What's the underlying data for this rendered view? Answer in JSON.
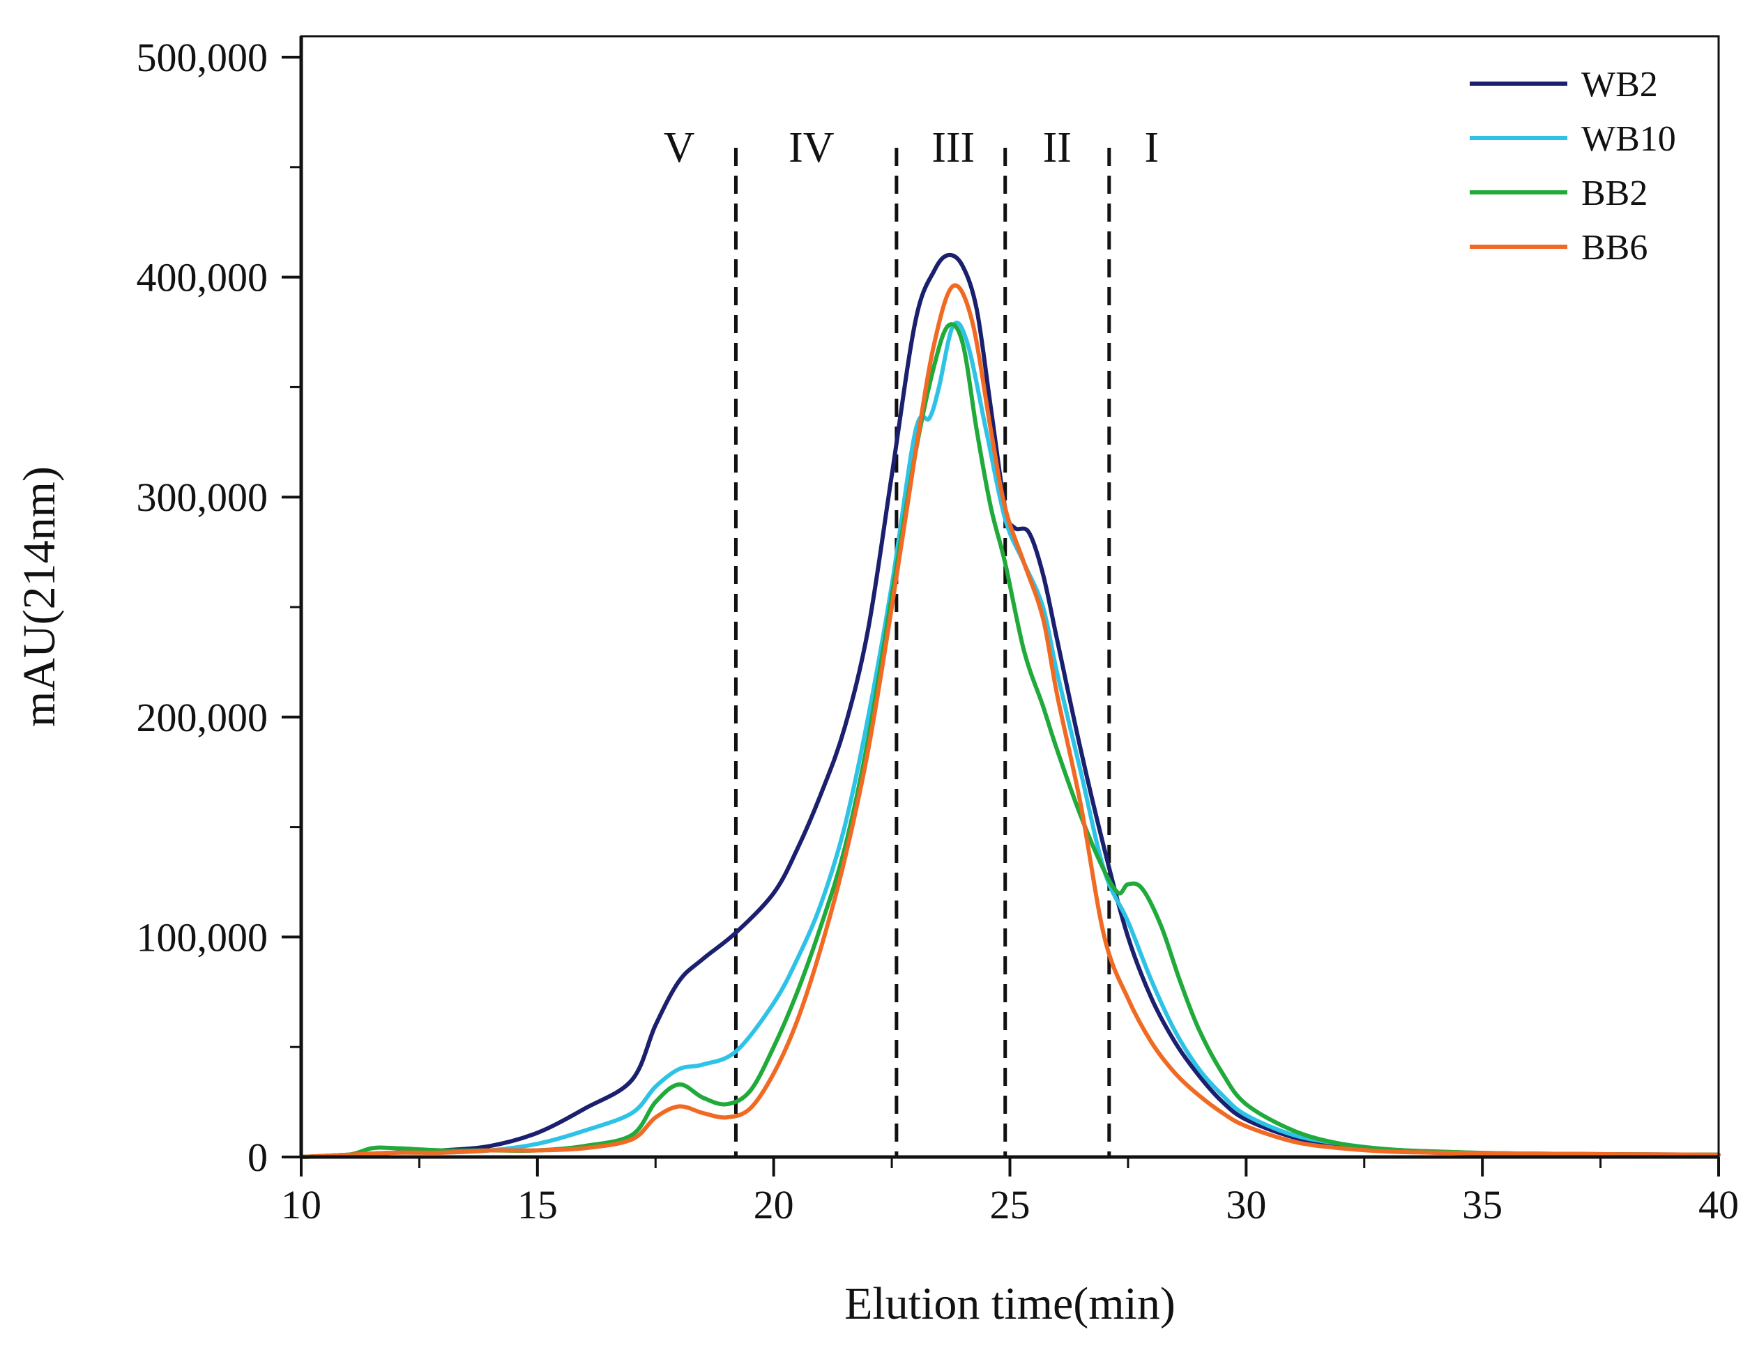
{
  "chart_data": {
    "type": "line",
    "title": "",
    "xlabel": "Elution time(min)",
    "ylabel": "mAU(214nm)",
    "xlim": [
      10,
      40
    ],
    "ylim": [
      0,
      500000
    ],
    "xticks": [
      10,
      15,
      20,
      25,
      30,
      35,
      40
    ],
    "xtick_labels": [
      "10",
      "15",
      "20",
      "25",
      "30",
      "35",
      "40"
    ],
    "yticks": [
      0,
      100000,
      200000,
      300000,
      400000,
      500000
    ],
    "ytick_labels": [
      "0",
      "100,000",
      "200,000",
      "300,000",
      "400,000",
      "500,000"
    ],
    "legend_position": "top-right",
    "regions": [
      {
        "label": "V",
        "x": 18.0
      },
      {
        "label": "IV",
        "x": 20.8
      },
      {
        "label": "III",
        "x": 23.8
      },
      {
        "label": "II",
        "x": 26.0
      },
      {
        "label": "I",
        "x": 28.0
      }
    ],
    "region_boundaries": [
      19.2,
      22.6,
      24.9,
      27.1
    ],
    "series": [
      {
        "name": "WB2",
        "color": "#1a1f6e",
        "points": [
          [
            10,
            0
          ],
          [
            11,
            1000
          ],
          [
            12,
            2000
          ],
          [
            13,
            3000
          ],
          [
            14,
            5000
          ],
          [
            15,
            11000
          ],
          [
            16,
            22000
          ],
          [
            17,
            35000
          ],
          [
            17.5,
            60000
          ],
          [
            18,
            80000
          ],
          [
            18.5,
            90000
          ],
          [
            19.2,
            102000
          ],
          [
            20,
            120000
          ],
          [
            20.5,
            140000
          ],
          [
            21,
            165000
          ],
          [
            21.5,
            195000
          ],
          [
            22,
            240000
          ],
          [
            22.5,
            310000
          ],
          [
            23,
            380000
          ],
          [
            23.4,
            403000
          ],
          [
            23.7,
            410000
          ],
          [
            24,
            405000
          ],
          [
            24.3,
            385000
          ],
          [
            24.6,
            340000
          ],
          [
            24.9,
            295000
          ],
          [
            25.1,
            286000
          ],
          [
            25.4,
            284000
          ],
          [
            25.7,
            265000
          ],
          [
            26,
            235000
          ],
          [
            26.5,
            185000
          ],
          [
            27,
            140000
          ],
          [
            27.5,
            100000
          ],
          [
            28,
            72000
          ],
          [
            28.5,
            52000
          ],
          [
            29,
            37000
          ],
          [
            29.5,
            25000
          ],
          [
            30,
            17000
          ],
          [
            31,
            9000
          ],
          [
            32,
            5000
          ],
          [
            33,
            3000
          ],
          [
            34,
            2000
          ],
          [
            36,
            1500
          ],
          [
            40,
            1000
          ]
        ]
      },
      {
        "name": "WB10",
        "color": "#2ec3e6",
        "points": [
          [
            10,
            0
          ],
          [
            11,
            1000
          ],
          [
            12,
            2000
          ],
          [
            13,
            2000
          ],
          [
            14,
            3000
          ],
          [
            15,
            6000
          ],
          [
            16,
            12000
          ],
          [
            17,
            20000
          ],
          [
            17.5,
            32000
          ],
          [
            18,
            40000
          ],
          [
            18.5,
            42000
          ],
          [
            19.2,
            48000
          ],
          [
            20,
            70000
          ],
          [
            20.5,
            90000
          ],
          [
            21,
            115000
          ],
          [
            21.5,
            150000
          ],
          [
            22,
            200000
          ],
          [
            22.5,
            260000
          ],
          [
            23,
            330000
          ],
          [
            23.3,
            336000
          ],
          [
            23.5,
            350000
          ],
          [
            23.8,
            378000
          ],
          [
            24.1,
            370000
          ],
          [
            24.5,
            330000
          ],
          [
            24.9,
            290000
          ],
          [
            25.3,
            270000
          ],
          [
            25.7,
            250000
          ],
          [
            26,
            220000
          ],
          [
            26.5,
            175000
          ],
          [
            27,
            130000
          ],
          [
            27.5,
            107000
          ],
          [
            28,
            80000
          ],
          [
            28.5,
            57000
          ],
          [
            29,
            40000
          ],
          [
            29.5,
            28000
          ],
          [
            30,
            19000
          ],
          [
            31,
            10000
          ],
          [
            32,
            6000
          ],
          [
            33,
            3500
          ],
          [
            34,
            2500
          ],
          [
            36,
            1500
          ],
          [
            40,
            1000
          ]
        ]
      },
      {
        "name": "BB2",
        "color": "#1faa3a",
        "points": [
          [
            10,
            0
          ],
          [
            11,
            1000
          ],
          [
            11.5,
            4000
          ],
          [
            12,
            4000
          ],
          [
            13,
            3000
          ],
          [
            14,
            3000
          ],
          [
            15,
            3000
          ],
          [
            16,
            5000
          ],
          [
            17,
            10000
          ],
          [
            17.5,
            25000
          ],
          [
            18,
            33000
          ],
          [
            18.5,
            27000
          ],
          [
            19,
            24000
          ],
          [
            19.5,
            30000
          ],
          [
            20,
            50000
          ],
          [
            20.5,
            75000
          ],
          [
            21,
            105000
          ],
          [
            21.5,
            140000
          ],
          [
            22,
            190000
          ],
          [
            22.5,
            255000
          ],
          [
            23,
            320000
          ],
          [
            23.4,
            360000
          ],
          [
            23.7,
            378000
          ],
          [
            24,
            370000
          ],
          [
            24.3,
            330000
          ],
          [
            24.6,
            295000
          ],
          [
            24.9,
            270000
          ],
          [
            25.3,
            230000
          ],
          [
            25.7,
            205000
          ],
          [
            26,
            185000
          ],
          [
            26.5,
            155000
          ],
          [
            27,
            130000
          ],
          [
            27.3,
            120000
          ],
          [
            27.5,
            124000
          ],
          [
            27.8,
            122000
          ],
          [
            28.2,
            105000
          ],
          [
            28.6,
            80000
          ],
          [
            29,
            58000
          ],
          [
            29.5,
            38000
          ],
          [
            30,
            24000
          ],
          [
            31,
            12000
          ],
          [
            32,
            6000
          ],
          [
            33,
            3500
          ],
          [
            34,
            2500
          ],
          [
            36,
            1500
          ],
          [
            40,
            1000
          ]
        ]
      },
      {
        "name": "BB6",
        "color": "#f06a23",
        "points": [
          [
            10,
            0
          ],
          [
            11,
            1000
          ],
          [
            12,
            2000
          ],
          [
            13,
            2000
          ],
          [
            14,
            3000
          ],
          [
            15,
            3000
          ],
          [
            16,
            4000
          ],
          [
            17,
            8000
          ],
          [
            17.5,
            18000
          ],
          [
            18,
            23000
          ],
          [
            18.5,
            20000
          ],
          [
            19,
            18000
          ],
          [
            19.5,
            22000
          ],
          [
            20,
            38000
          ],
          [
            20.5,
            62000
          ],
          [
            21,
            95000
          ],
          [
            21.5,
            135000
          ],
          [
            22,
            185000
          ],
          [
            22.5,
            250000
          ],
          [
            23,
            320000
          ],
          [
            23.4,
            370000
          ],
          [
            23.8,
            396000
          ],
          [
            24.2,
            380000
          ],
          [
            24.6,
            330000
          ],
          [
            24.9,
            295000
          ],
          [
            25.3,
            270000
          ],
          [
            25.7,
            245000
          ],
          [
            26,
            210000
          ],
          [
            26.5,
            160000
          ],
          [
            27,
            100000
          ],
          [
            27.5,
            72000
          ],
          [
            28,
            52000
          ],
          [
            28.5,
            38000
          ],
          [
            29,
            28000
          ],
          [
            29.5,
            20000
          ],
          [
            30,
            14000
          ],
          [
            31,
            7000
          ],
          [
            32,
            4000
          ],
          [
            33,
            2500
          ],
          [
            34,
            2000
          ],
          [
            36,
            1500
          ],
          [
            40,
            1000
          ]
        ]
      }
    ]
  }
}
